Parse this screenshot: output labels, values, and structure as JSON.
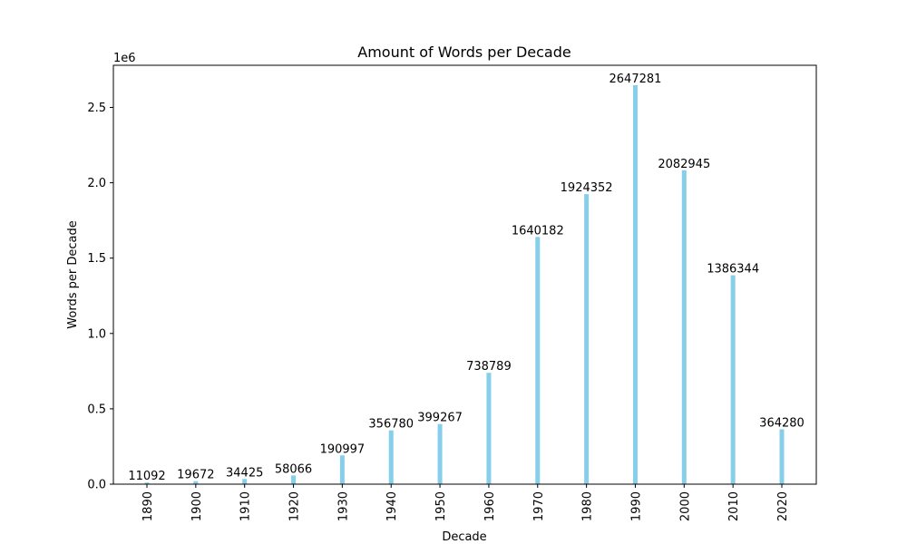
{
  "chart_data": {
    "type": "bar",
    "title": "Amount of Words per Decade",
    "xlabel": "Decade",
    "ylabel": "Words per Decade",
    "y_offset_label": "1e6",
    "y_scale": 1000000,
    "categories": [
      "1890",
      "1900",
      "1910",
      "1920",
      "1930",
      "1940",
      "1950",
      "1960",
      "1970",
      "1980",
      "1990",
      "2000",
      "2010",
      "2020"
    ],
    "values": [
      11092,
      19672,
      34425,
      58066,
      190997,
      356780,
      399267,
      738789,
      1640182,
      1924352,
      2647281,
      2082945,
      1386344,
      364280
    ],
    "data_labels": [
      "11092",
      "19672",
      "34425",
      "58066",
      "190997",
      "356780",
      "399267",
      "738789",
      "1640182",
      "1924352",
      "2647281",
      "2082945",
      "1386344",
      "364280"
    ],
    "y_ticks": [
      0,
      0.5,
      1.0,
      1.5,
      2.0,
      2.5
    ],
    "y_tick_labels": [
      "0.0",
      "0.5",
      "1.0",
      "1.5",
      "2.0",
      "2.5"
    ],
    "ylim": [
      0,
      2779645
    ],
    "bar_color": "#87CEEB",
    "grid": false,
    "legend": "none"
  }
}
